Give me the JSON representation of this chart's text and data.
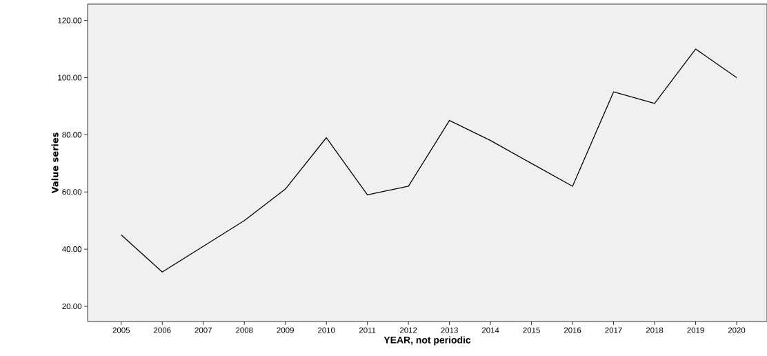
{
  "chart_data": {
    "type": "line",
    "xlabel": "YEAR, not periodic",
    "ylabel": "Value series",
    "categories": [
      "2005",
      "2006",
      "2007",
      "2008",
      "2009",
      "2010",
      "2011",
      "2012",
      "2013",
      "2014",
      "2015",
      "2016",
      "2017",
      "2018",
      "2019",
      "2020"
    ],
    "values": [
      45,
      32,
      41,
      50,
      61,
      79,
      59,
      62,
      85,
      78,
      70,
      62,
      95,
      91,
      110,
      100
    ],
    "color": "#000000",
    "ylim": [
      14.7,
      125.7
    ],
    "yticks": [
      {
        "value": 20,
        "label": "20.00"
      },
      {
        "value": 40,
        "label": "40.00"
      },
      {
        "value": 60,
        "label": "60.00"
      },
      {
        "value": 80,
        "label": "80.00"
      },
      {
        "value": 100,
        "label": "100.00"
      },
      {
        "value": 120,
        "label": "120.00"
      }
    ],
    "grid": false,
    "marker": "none",
    "line_style": "solid"
  }
}
